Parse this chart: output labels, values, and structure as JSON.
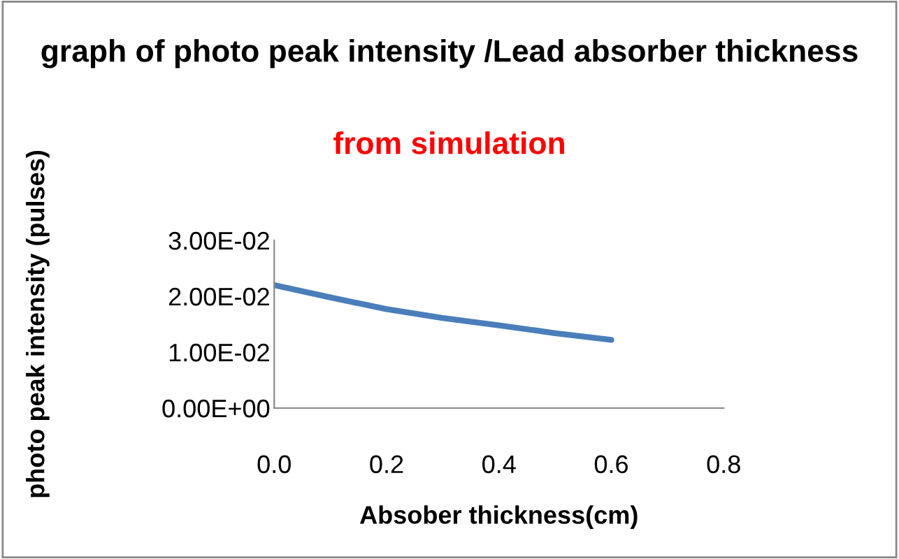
{
  "chart_data": {
    "type": "line",
    "title": "graph of photo peak intensity /Lead absorber thickness",
    "subtitle": "from simulation",
    "xlabel": "Absober thickness(cm)",
    "ylabel": "photo peak intensity (pulses)",
    "x": [
      0.0,
      0.1,
      0.2,
      0.3,
      0.4,
      0.5,
      0.6
    ],
    "series": [
      {
        "color": "#4a7ebb",
        "values": [
          0.022,
          0.0198,
          0.0177,
          0.0161,
          0.0148,
          0.0134,
          0.0122
        ]
      }
    ],
    "xlim": [
      0,
      0.8
    ],
    "xticks": [
      {
        "value": 0,
        "label": "0.0"
      },
      {
        "value": 0.2,
        "label": "0.2"
      },
      {
        "value": 0.4,
        "label": "0.4"
      },
      {
        "value": 0.6,
        "label": "0.6"
      },
      {
        "value": 0.8,
        "label": "0.8"
      }
    ],
    "ylim": [
      0,
      0.03
    ],
    "yticks": [
      {
        "value": 0,
        "label": "0.00E+00"
      },
      {
        "value": 0.01,
        "label": "1.00E-02"
      },
      {
        "value": 0.02,
        "label": "2.00E-02"
      },
      {
        "value": 0.03,
        "label": "3.00E-02"
      }
    ],
    "grid": false,
    "legend": false,
    "marker": "none",
    "line_style": "solid"
  }
}
